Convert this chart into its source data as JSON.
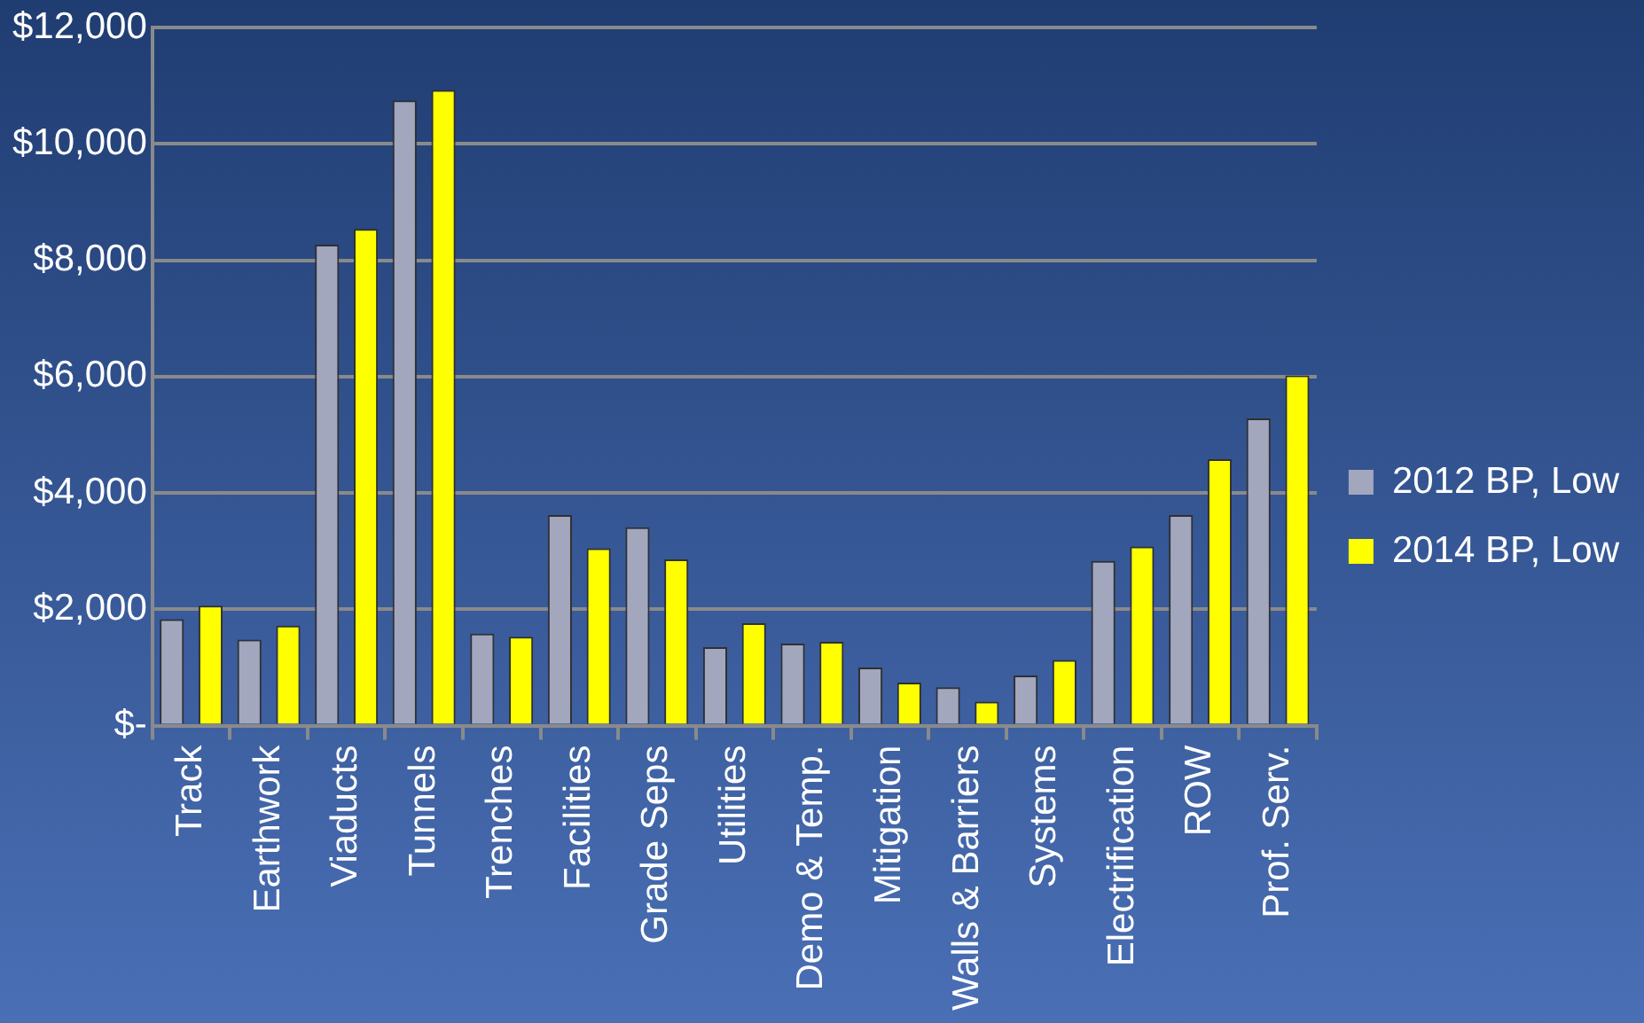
{
  "chart_data": {
    "type": "bar",
    "categories": [
      "Track",
      "Earthwork",
      "Viaducts",
      "Tunnels",
      "Trenches",
      "Facilities",
      "Grade Seps",
      "Utilities",
      "Demo & Temp.",
      "Mitigation",
      "Walls & Barriers",
      "Systems",
      "Electrification",
      "ROW",
      "Prof. Serv."
    ],
    "series": [
      {
        "name": "2012 BP, Low",
        "color": "#a3a7bd",
        "values": [
          1830,
          1480,
          8270,
          10750,
          1580,
          3620,
          3410,
          1350,
          1410,
          1000,
          660,
          860,
          2830,
          3620,
          5280
        ]
      },
      {
        "name": "2014 BP, Low",
        "color": "#ffff00",
        "values": [
          2060,
          1720,
          8540,
          10930,
          1530,
          3050,
          2860,
          1760,
          1440,
          740,
          410,
          1130,
          3080,
          4580,
          6020
        ]
      }
    ],
    "ylim": [
      0,
      12000
    ],
    "yticks": [
      {
        "value": 0,
        "label": "$-"
      },
      {
        "value": 2000,
        "label": "$2,000"
      },
      {
        "value": 4000,
        "label": "$4,000"
      },
      {
        "value": 6000,
        "label": "$6,000"
      },
      {
        "value": 8000,
        "label": "$8,000"
      },
      {
        "value": 10000,
        "label": "$10,000"
      },
      {
        "value": 12000,
        "label": "$12,000"
      }
    ],
    "grid": "y",
    "legend": "right"
  }
}
